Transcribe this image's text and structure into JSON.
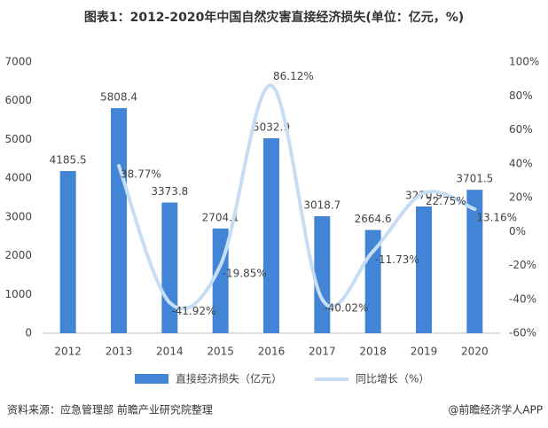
{
  "chart_data": {
    "type": "bar-line",
    "title": "图表1：2012-2020年中国自然灾害直接经济损失(单位：亿元，%)",
    "categories": [
      "2012",
      "2013",
      "2014",
      "2015",
      "2016",
      "2017",
      "2018",
      "2019",
      "2020"
    ],
    "series": [
      {
        "name": "直接经济损失（亿元）",
        "type": "bar",
        "color": "#4285d6",
        "values": [
          4185.5,
          5808.4,
          3373.8,
          2704.1,
          5032.9,
          3018.7,
          2664.6,
          3270.9,
          3701.5
        ]
      },
      {
        "name": "同比增长（%）",
        "type": "line",
        "color": "#c6ddf4",
        "axis": "y2",
        "values": [
          null,
          38.77,
          -41.92,
          -19.85,
          86.12,
          -40.02,
          -11.73,
          22.75,
          13.16
        ],
        "value_labels": [
          null,
          "38.77%",
          "-41.92%",
          "-19.85%",
          "86.12%",
          "-40.02%",
          "-11.73%",
          "22.75%",
          "13.16%"
        ]
      }
    ],
    "ylim": [
      0,
      7000
    ],
    "yticks": [
      0,
      1000,
      2000,
      3000,
      4000,
      5000,
      6000,
      7000
    ],
    "y2lim": [
      -60,
      100
    ],
    "y2ticks": [
      {
        "value": -60,
        "label": "-60%"
      },
      {
        "value": -40,
        "label": "-40%"
      },
      {
        "value": -20,
        "label": "-20%"
      },
      {
        "value": 0,
        "label": "0%"
      },
      {
        "value": 20,
        "label": "20%"
      },
      {
        "value": 40,
        "label": "40%"
      },
      {
        "value": 60,
        "label": "60%"
      },
      {
        "value": 80,
        "label": "80%"
      },
      {
        "value": 100,
        "label": "100%"
      }
    ],
    "grid": false,
    "source": "资料来源：应急管理部 前瞻产业研究院整理",
    "credit": "@前瞻经济学人APP"
  }
}
